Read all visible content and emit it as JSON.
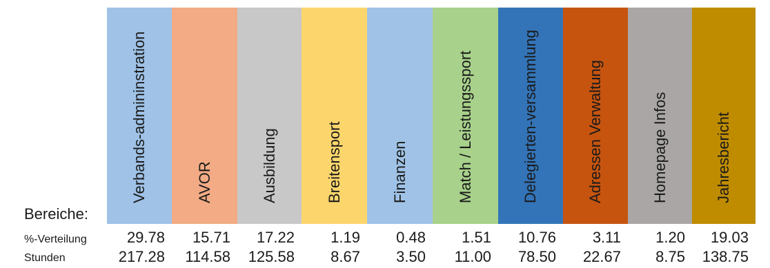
{
  "row_header_label": "Bereiche:",
  "percent_row_label": "%-Verteilung",
  "hours_row_label": "Stunden",
  "columns": [
    {
      "label": "Verbands-admininstration",
      "color": "#9fc2e6",
      "percent": "29.78",
      "hours": "217.28"
    },
    {
      "label": "AVOR",
      "color": "#f2ab84",
      "percent": "15.71",
      "hours": "114.58"
    },
    {
      "label": "Ausbildung",
      "color": "#c8c8c8",
      "percent": "17.22",
      "hours": "125.58"
    },
    {
      "label": "Breitensport",
      "color": "#fcd66c",
      "percent": "1.19",
      "hours": "8.67"
    },
    {
      "label": "Finanzen",
      "color": "#9fc2e6",
      "percent": "0.48",
      "hours": "3.50"
    },
    {
      "label": "Match / Leistungssport",
      "color": "#a8d18b",
      "percent": "1.51",
      "hours": "11.00"
    },
    {
      "label": "Delegierten-versammlung",
      "color": "#3374b8",
      "percent": "10.76",
      "hours": "78.50"
    },
    {
      "label": "Adressen Verwaltung",
      "color": "#c6540f",
      "percent": "3.11",
      "hours": "22.67"
    },
    {
      "label": "Homepage Infos",
      "color": "#aaa6a6",
      "percent": "1.20",
      "hours": "8.75"
    },
    {
      "label": "Jahresbericht",
      "color": "#bf8c00",
      "percent": "19.03",
      "hours": "138.75"
    }
  ]
}
